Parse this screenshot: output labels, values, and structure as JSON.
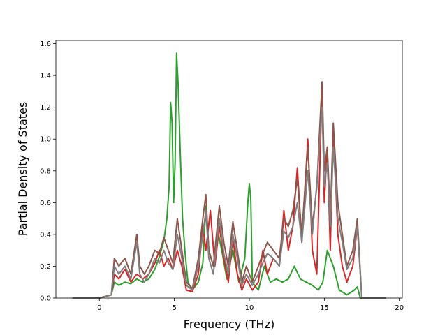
{
  "chart_data": {
    "type": "line",
    "title": "",
    "xlabel": "Frequency (THz)",
    "ylabel": "Partial Density of States",
    "xlim": [
      -2.9,
      20.2
    ],
    "ylim": [
      0.0,
      1.62
    ],
    "xticks": [
      0,
      5,
      10,
      15,
      20
    ],
    "yticks": [
      0.0,
      0.2,
      0.4,
      0.6,
      0.8,
      1.0,
      1.2,
      1.4,
      1.6
    ],
    "grid": false,
    "legend": "none",
    "series": [
      {
        "color": "#2ca02c",
        "points": [
          [
            -1.8,
            0
          ],
          [
            0,
            0
          ],
          [
            0.8,
            0.02
          ],
          [
            1.0,
            0.1
          ],
          [
            1.3,
            0.08
          ],
          [
            1.7,
            0.1
          ],
          [
            2.1,
            0.09
          ],
          [
            2.5,
            0.12
          ],
          [
            2.9,
            0.1
          ],
          [
            3.3,
            0.12
          ],
          [
            3.7,
            0.18
          ],
          [
            4.0,
            0.26
          ],
          [
            4.3,
            0.36
          ],
          [
            4.5,
            0.5
          ],
          [
            4.65,
            0.7
          ],
          [
            4.75,
            1.23
          ],
          [
            4.85,
            1.1
          ],
          [
            4.95,
            0.6
          ],
          [
            5.05,
            0.85
          ],
          [
            5.15,
            1.54
          ],
          [
            5.25,
            1.35
          ],
          [
            5.4,
            0.9
          ],
          [
            5.55,
            0.5
          ],
          [
            5.7,
            0.3
          ],
          [
            5.9,
            0.1
          ],
          [
            6.2,
            0.05
          ],
          [
            6.6,
            0.1
          ],
          [
            6.9,
            0.22
          ],
          [
            7.1,
            0.58
          ],
          [
            7.3,
            0.3
          ],
          [
            7.6,
            0.2
          ],
          [
            7.9,
            0.42
          ],
          [
            8.2,
            0.28
          ],
          [
            8.5,
            0.12
          ],
          [
            8.9,
            0.3
          ],
          [
            9.3,
            0.1
          ],
          [
            9.7,
            0.25
          ],
          [
            9.9,
            0.6
          ],
          [
            10.0,
            0.72
          ],
          [
            10.1,
            0.62
          ],
          [
            10.2,
            0.1
          ],
          [
            10.6,
            0.05
          ],
          [
            11.0,
            0.2
          ],
          [
            11.4,
            0.1
          ],
          [
            11.8,
            0.12
          ],
          [
            12.2,
            0.1
          ],
          [
            12.6,
            0.12
          ],
          [
            13.0,
            0.2
          ],
          [
            13.4,
            0.12
          ],
          [
            13.8,
            0.1
          ],
          [
            14.2,
            0.08
          ],
          [
            14.6,
            0.05
          ],
          [
            14.9,
            0.1
          ],
          [
            15.2,
            0.3
          ],
          [
            15.6,
            0.2
          ],
          [
            16.0,
            0.05
          ],
          [
            16.5,
            0.02
          ],
          [
            17.0,
            0.05
          ],
          [
            17.2,
            0.07
          ],
          [
            17.4,
            0
          ],
          [
            19.1,
            0
          ]
        ]
      },
      {
        "color": "#d62728",
        "points": [
          [
            -1.8,
            0
          ],
          [
            0,
            0
          ],
          [
            0.8,
            0.02
          ],
          [
            1.0,
            0.15
          ],
          [
            1.3,
            0.12
          ],
          [
            1.7,
            0.18
          ],
          [
            2.1,
            0.1
          ],
          [
            2.5,
            0.15
          ],
          [
            2.9,
            0.12
          ],
          [
            3.3,
            0.15
          ],
          [
            3.7,
            0.22
          ],
          [
            4.0,
            0.3
          ],
          [
            4.3,
            0.2
          ],
          [
            4.6,
            0.25
          ],
          [
            4.9,
            0.18
          ],
          [
            5.2,
            0.3
          ],
          [
            5.5,
            0.2
          ],
          [
            5.8,
            0.05
          ],
          [
            6.2,
            0.04
          ],
          [
            6.6,
            0.15
          ],
          [
            6.9,
            0.45
          ],
          [
            7.1,
            0.3
          ],
          [
            7.4,
            0.55
          ],
          [
            7.7,
            0.2
          ],
          [
            8.0,
            0.45
          ],
          [
            8.3,
            0.25
          ],
          [
            8.6,
            0.1
          ],
          [
            8.9,
            0.38
          ],
          [
            9.2,
            0.15
          ],
          [
            9.5,
            0.05
          ],
          [
            9.8,
            0.12
          ],
          [
            10.2,
            0.05
          ],
          [
            10.6,
            0.1
          ],
          [
            10.9,
            0.3
          ],
          [
            11.2,
            0.15
          ],
          [
            11.6,
            0.25
          ],
          [
            12.0,
            0.2
          ],
          [
            12.3,
            0.55
          ],
          [
            12.6,
            0.3
          ],
          [
            12.9,
            0.45
          ],
          [
            13.2,
            0.82
          ],
          [
            13.5,
            0.35
          ],
          [
            13.9,
            1.0
          ],
          [
            14.2,
            0.3
          ],
          [
            14.5,
            0.15
          ],
          [
            14.85,
            1.33
          ],
          [
            15.0,
            0.6
          ],
          [
            15.2,
            0.95
          ],
          [
            15.4,
            0.3
          ],
          [
            15.6,
            1.08
          ],
          [
            15.9,
            0.4
          ],
          [
            16.2,
            0.2
          ],
          [
            16.5,
            0.1
          ],
          [
            16.9,
            0.2
          ],
          [
            17.2,
            0.45
          ],
          [
            17.5,
            0
          ],
          [
            19.1,
            0
          ]
        ]
      },
      {
        "color": "#8c564b",
        "points": [
          [
            -1.8,
            0
          ],
          [
            0,
            0
          ],
          [
            0.8,
            0.02
          ],
          [
            1.0,
            0.25
          ],
          [
            1.3,
            0.2
          ],
          [
            1.7,
            0.25
          ],
          [
            2.1,
            0.15
          ],
          [
            2.5,
            0.4
          ],
          [
            2.7,
            0.2
          ],
          [
            3.0,
            0.15
          ],
          [
            3.3,
            0.2
          ],
          [
            3.7,
            0.3
          ],
          [
            4.0,
            0.28
          ],
          [
            4.3,
            0.38
          ],
          [
            4.6,
            0.3
          ],
          [
            4.9,
            0.22
          ],
          [
            5.2,
            0.5
          ],
          [
            5.5,
            0.3
          ],
          [
            5.8,
            0.1
          ],
          [
            6.2,
            0.06
          ],
          [
            6.6,
            0.25
          ],
          [
            6.9,
            0.5
          ],
          [
            7.1,
            0.65
          ],
          [
            7.3,
            0.3
          ],
          [
            7.6,
            0.2
          ],
          [
            8.0,
            0.58
          ],
          [
            8.3,
            0.35
          ],
          [
            8.6,
            0.2
          ],
          [
            8.9,
            0.48
          ],
          [
            9.2,
            0.3
          ],
          [
            9.5,
            0.1
          ],
          [
            9.8,
            0.2
          ],
          [
            10.2,
            0.1
          ],
          [
            10.6,
            0.2
          ],
          [
            10.9,
            0.28
          ],
          [
            11.2,
            0.35
          ],
          [
            11.6,
            0.3
          ],
          [
            12.0,
            0.25
          ],
          [
            12.3,
            0.5
          ],
          [
            12.6,
            0.45
          ],
          [
            12.9,
            0.55
          ],
          [
            13.2,
            0.75
          ],
          [
            13.5,
            0.4
          ],
          [
            13.9,
            0.95
          ],
          [
            14.2,
            0.45
          ],
          [
            14.5,
            0.7
          ],
          [
            14.85,
            1.36
          ],
          [
            15.0,
            0.8
          ],
          [
            15.2,
            0.95
          ],
          [
            15.4,
            0.5
          ],
          [
            15.6,
            1.1
          ],
          [
            15.9,
            0.6
          ],
          [
            16.2,
            0.4
          ],
          [
            16.5,
            0.2
          ],
          [
            16.9,
            0.3
          ],
          [
            17.2,
            0.5
          ],
          [
            17.5,
            0
          ],
          [
            19.1,
            0
          ]
        ]
      },
      {
        "color": "#7f7f7f",
        "points": [
          [
            -1.8,
            0
          ],
          [
            0,
            0
          ],
          [
            0.8,
            0.02
          ],
          [
            1.0,
            0.2
          ],
          [
            1.3,
            0.15
          ],
          [
            1.7,
            0.2
          ],
          [
            2.1,
            0.12
          ],
          [
            2.5,
            0.35
          ],
          [
            2.7,
            0.15
          ],
          [
            3.0,
            0.1
          ],
          [
            3.3,
            0.15
          ],
          [
            3.7,
            0.25
          ],
          [
            4.0,
            0.22
          ],
          [
            4.3,
            0.3
          ],
          [
            4.6,
            0.22
          ],
          [
            4.9,
            0.18
          ],
          [
            5.2,
            0.4
          ],
          [
            5.5,
            0.25
          ],
          [
            5.8,
            0.08
          ],
          [
            6.2,
            0.05
          ],
          [
            6.6,
            0.2
          ],
          [
            6.9,
            0.4
          ],
          [
            7.1,
            0.55
          ],
          [
            7.3,
            0.25
          ],
          [
            7.6,
            0.15
          ],
          [
            8.0,
            0.5
          ],
          [
            8.3,
            0.28
          ],
          [
            8.6,
            0.15
          ],
          [
            8.9,
            0.4
          ],
          [
            9.2,
            0.25
          ],
          [
            9.5,
            0.08
          ],
          [
            9.8,
            0.15
          ],
          [
            10.2,
            0.08
          ],
          [
            10.6,
            0.15
          ],
          [
            10.9,
            0.22
          ],
          [
            11.2,
            0.28
          ],
          [
            11.6,
            0.25
          ],
          [
            12.0,
            0.2
          ],
          [
            12.3,
            0.42
          ],
          [
            12.6,
            0.38
          ],
          [
            12.9,
            0.45
          ],
          [
            13.2,
            0.6
          ],
          [
            13.5,
            0.35
          ],
          [
            13.9,
            0.8
          ],
          [
            14.2,
            0.4
          ],
          [
            14.5,
            0.72
          ],
          [
            14.85,
            1.2
          ],
          [
            15.0,
            0.7
          ],
          [
            15.2,
            0.85
          ],
          [
            15.4,
            0.45
          ],
          [
            15.6,
            0.95
          ],
          [
            15.9,
            0.5
          ],
          [
            16.2,
            0.35
          ],
          [
            16.5,
            0.18
          ],
          [
            16.9,
            0.25
          ],
          [
            17.2,
            0.45
          ],
          [
            17.5,
            0
          ],
          [
            19.1,
            0
          ]
        ]
      }
    ]
  }
}
